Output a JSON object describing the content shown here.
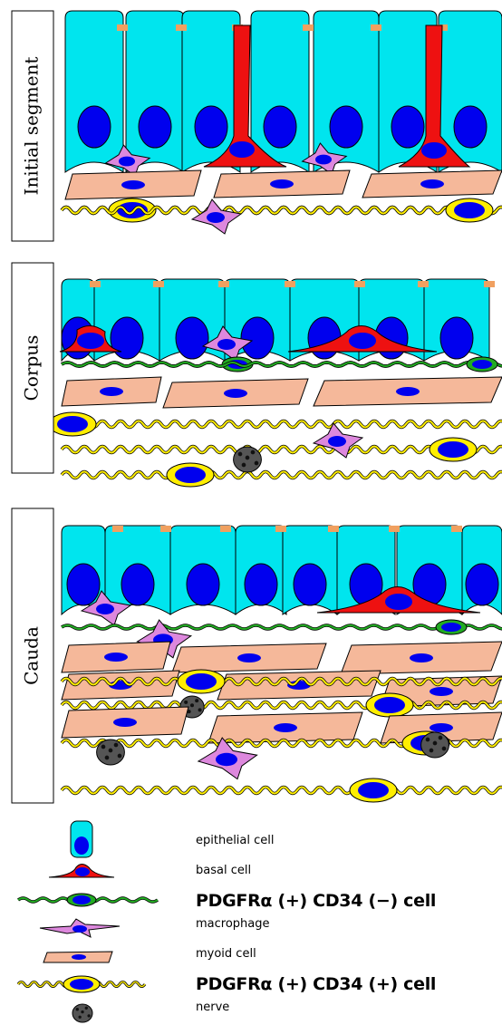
{
  "segments": [
    {
      "label": "Initial segment"
    },
    {
      "label": "Corpus"
    },
    {
      "label": "Cauda"
    }
  ],
  "legend": [
    {
      "label": "epithelial cell",
      "icon": "epithelial-cell-icon"
    },
    {
      "label": "basal cell",
      "icon": "basal-cell-icon"
    },
    {
      "label": "PDGFRα (+) CD34 (−) cell",
      "icon": "pdgfra-cd34-neg-cell-icon"
    },
    {
      "label": "macrophage",
      "icon": "macrophage-icon"
    },
    {
      "label": "myoid cell",
      "icon": "myoid-cell-icon"
    },
    {
      "label": "PDGFRα (+) CD34 (+) cell",
      "icon": "pdgfra-cd34-pos-cell-icon"
    },
    {
      "label": "nerve",
      "icon": "nerve-icon"
    }
  ],
  "colors": {
    "epithelial": "#00e5ee",
    "nucleus": "#0000ee",
    "basal": "#ee1111",
    "macrophage": "#dd88dd",
    "myoid": "#f5b89a",
    "pdgfra_neg": "#22aa22",
    "pdgfra_pos": "#ffee00",
    "nerve": "#555555",
    "junction": "#f0a060"
  }
}
